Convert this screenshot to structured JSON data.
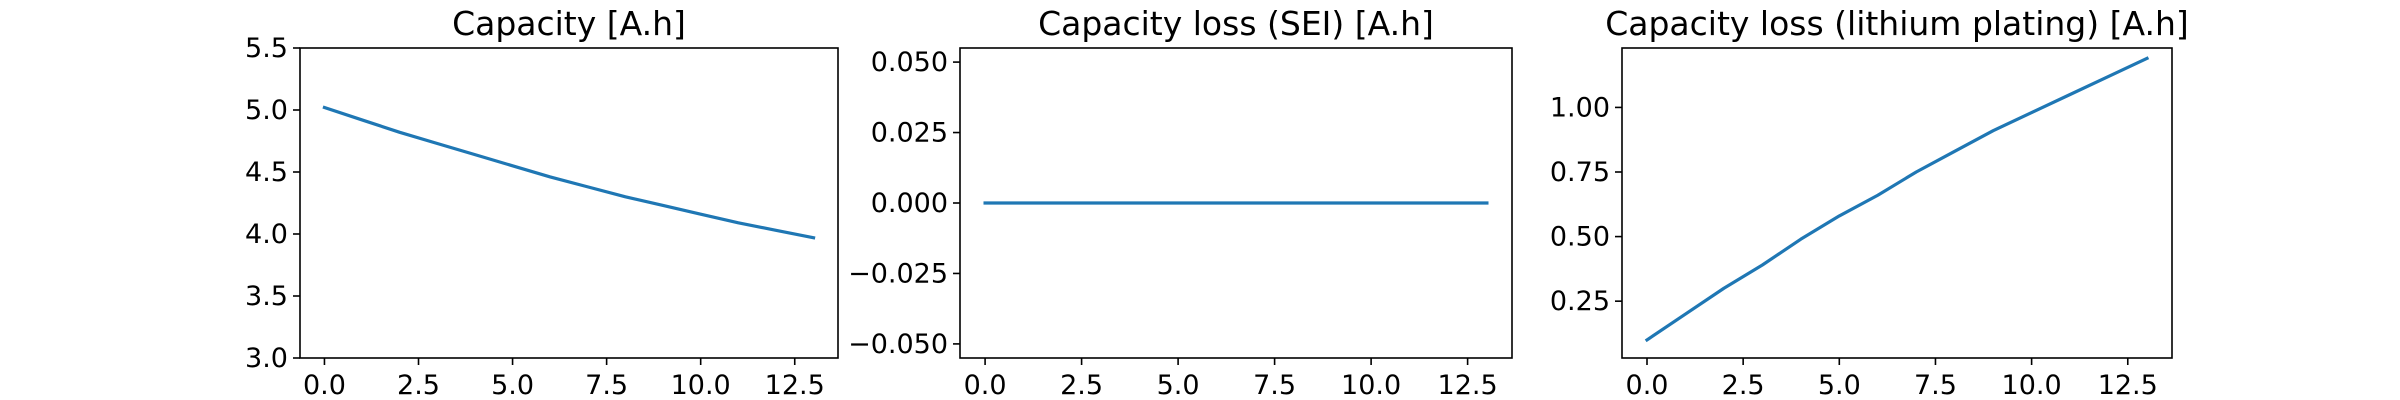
{
  "chart_data": [
    {
      "type": "line",
      "title": "Capacity [A.h]",
      "xlabel": "",
      "ylabel": "",
      "xlim": [
        -0.65,
        13.65
      ],
      "ylim": [
        3.0,
        5.5
      ],
      "xticks": [
        0.0,
        2.5,
        5.0,
        7.5,
        10.0,
        12.5
      ],
      "xtick_labels": [
        "0.0",
        "2.5",
        "5.0",
        "7.5",
        "10.0",
        "12.5"
      ],
      "yticks": [
        3.0,
        3.5,
        4.0,
        4.5,
        5.0,
        5.5
      ],
      "ytick_labels": [
        "3.0",
        "3.5",
        "4.0",
        "4.5",
        "5.0",
        "5.5"
      ],
      "grid": false,
      "series": [
        {
          "color": "#1f77b4",
          "x": [
            0,
            1,
            2,
            3,
            4,
            5,
            6,
            7,
            8,
            9,
            10,
            11,
            12,
            13
          ],
          "y": [
            5.02,
            4.92,
            4.82,
            4.73,
            4.64,
            4.55,
            4.46,
            4.38,
            4.3,
            4.23,
            4.16,
            4.09,
            4.03,
            3.97
          ]
        }
      ]
    },
    {
      "type": "line",
      "title": "Capacity loss (SEI) [A.h]",
      "xlabel": "",
      "ylabel": "",
      "xlim": [
        -0.65,
        13.65
      ],
      "ylim": [
        -0.055,
        0.055
      ],
      "xticks": [
        0.0,
        2.5,
        5.0,
        7.5,
        10.0,
        12.5
      ],
      "xtick_labels": [
        "0.0",
        "2.5",
        "5.0",
        "7.5",
        "10.0",
        "12.5"
      ],
      "yticks": [
        -0.05,
        -0.025,
        0.0,
        0.025,
        0.05
      ],
      "ytick_labels": [
        "−0.050",
        "−0.025",
        "0.000",
        "0.025",
        "0.050"
      ],
      "grid": false,
      "series": [
        {
          "color": "#1f77b4",
          "x": [
            0,
            1,
            2,
            3,
            4,
            5,
            6,
            7,
            8,
            9,
            10,
            11,
            12,
            13
          ],
          "y": [
            0,
            0,
            0,
            0,
            0,
            0,
            0,
            0,
            0,
            0,
            0,
            0,
            0,
            0
          ]
        }
      ]
    },
    {
      "type": "line",
      "title": "Capacity loss (lithium plating) [A.h]",
      "xlabel": "",
      "ylabel": "",
      "xlim": [
        -0.65,
        13.65
      ],
      "ylim": [
        0.03,
        1.23
      ],
      "xticks": [
        0.0,
        2.5,
        5.0,
        7.5,
        10.0,
        12.5
      ],
      "xtick_labels": [
        "0.0",
        "2.5",
        "5.0",
        "7.5",
        "10.0",
        "12.5"
      ],
      "yticks": [
        0.25,
        0.5,
        0.75,
        1.0
      ],
      "ytick_labels": [
        "0.25",
        "0.50",
        "0.75",
        "1.00"
      ],
      "grid": false,
      "series": [
        {
          "color": "#1f77b4",
          "x": [
            0,
            1,
            2,
            3,
            4,
            5,
            6,
            7,
            8,
            9,
            10,
            11,
            12,
            13
          ],
          "y": [
            0.1,
            0.2,
            0.3,
            0.39,
            0.49,
            0.58,
            0.66,
            0.75,
            0.83,
            0.91,
            0.98,
            1.05,
            1.12,
            1.19
          ]
        }
      ]
    }
  ]
}
